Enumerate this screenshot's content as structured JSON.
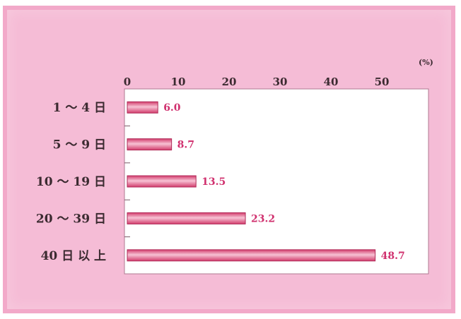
{
  "chart_data": {
    "type": "bar",
    "orientation": "horizontal",
    "categories": [
      "1 ～ 4 日",
      "5 ～ 9 日",
      "10 ～ 19 日",
      "20 ～ 39 日",
      "40 日 以 上"
    ],
    "values": [
      6.0,
      8.7,
      13.5,
      23.2,
      48.7
    ],
    "value_labels": [
      "6.0",
      "8.7",
      "13.5",
      "23.2",
      "48.7"
    ],
    "x_ticks": [
      "0",
      "10",
      "20",
      "30",
      "40",
      "50"
    ],
    "x_unit": "(%)",
    "xlim": [
      0,
      60
    ],
    "grid": false,
    "colors": {
      "frame": "#f5bcd6",
      "plot_bg": "#ffffff",
      "bar": "#e2577f",
      "bar_highlight": "#f7c2d4",
      "value_text": "#d0306e",
      "text": "#3b2a30"
    }
  }
}
